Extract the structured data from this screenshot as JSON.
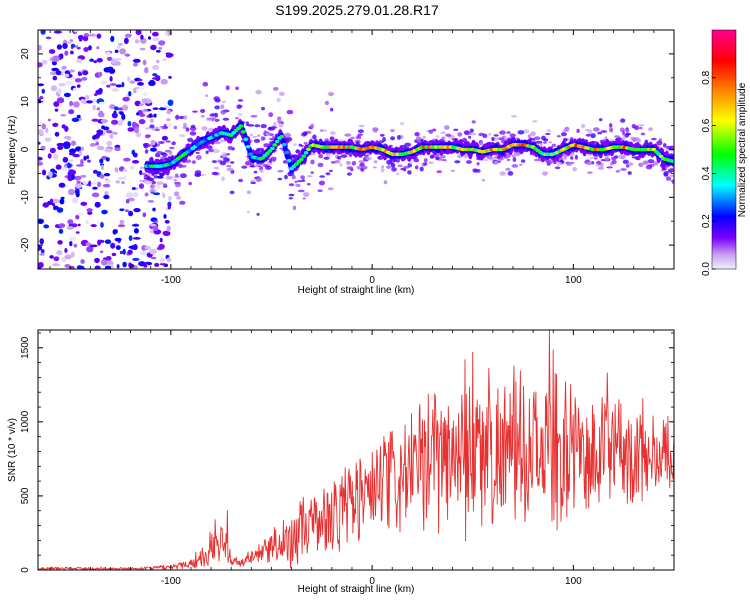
{
  "title": "S199.2025.279.01.28.R17",
  "chart_data": [
    {
      "type": "heatmap",
      "name": "spectrogram",
      "xlabel": "Height of straight line (km)",
      "ylabel": "Frequency (Hz)",
      "xlim": [
        -166,
        150
      ],
      "ylim": [
        -25,
        25
      ],
      "xticks": [
        -100,
        0,
        100
      ],
      "yticks": [
        -20,
        -10,
        0,
        10,
        20
      ],
      "colorbar": {
        "label": "Normalized spectral amplitude",
        "range": [
          0,
          1
        ],
        "ticks": [
          0.0,
          0.2,
          0.4,
          0.6,
          0.8
        ],
        "tick_labels": [
          "0.0",
          "0.2",
          "0.4",
          "0.6",
          "0.8"
        ],
        "stops": [
          "#f0f0ff",
          "#c8a0f0",
          "#7a00ff",
          "#0000ff",
          "#00ffff",
          "#00ff00",
          "#ffff00",
          "#ff8000",
          "#ff0000",
          "#ff0090"
        ]
      },
      "noise_region": {
        "x": [
          -166,
          -100
        ],
        "amplitude": 0.25
      },
      "ridge": {
        "x": [
          -110,
          -105,
          -100,
          -95,
          -90,
          -85,
          -80,
          -75,
          -70,
          -65,
          -60,
          -55,
          -50,
          -45,
          -40,
          -35,
          -30,
          -25,
          -20,
          -15,
          -10,
          -5,
          0,
          5,
          10,
          15,
          20,
          25,
          30,
          35,
          40,
          45,
          50,
          55,
          60,
          65,
          70,
          75,
          80,
          85,
          90,
          95,
          100,
          105,
          110,
          115,
          120,
          125,
          130,
          135,
          140,
          145,
          150
        ],
        "freq": [
          -3.5,
          -3.5,
          -3,
          -1.5,
          0,
          1.5,
          2.5,
          3.5,
          3,
          5,
          -1.5,
          -2,
          0,
          3,
          -4,
          -2,
          1,
          0.5,
          0.5,
          0.5,
          0.5,
          0,
          0.5,
          0,
          -1,
          -1,
          -0.5,
          0.5,
          0.5,
          0.5,
          0.5,
          0,
          0,
          -0.5,
          0,
          0,
          1,
          1,
          0.5,
          -1,
          -1,
          0,
          1,
          0.5,
          0,
          0,
          0.5,
          0.5,
          0,
          0,
          0,
          -2,
          -2.5
        ],
        "amp": [
          0.45,
          0.5,
          0.4,
          0.45,
          0.45,
          0.4,
          0.4,
          0.45,
          0.5,
          0.45,
          0.45,
          0.45,
          0.45,
          0.5,
          0.45,
          0.45,
          0.55,
          0.7,
          0.75,
          0.75,
          0.7,
          0.75,
          0.75,
          0.75,
          0.8,
          0.75,
          0.7,
          0.75,
          0.8,
          0.8,
          0.7,
          0.65,
          0.75,
          0.7,
          0.75,
          0.75,
          0.9,
          0.85,
          0.7,
          0.6,
          0.55,
          0.7,
          0.8,
          0.8,
          0.75,
          0.7,
          0.75,
          0.8,
          0.75,
          0.65,
          0.6,
          0.6,
          0.5
        ]
      }
    },
    {
      "type": "line",
      "name": "snr",
      "xlabel": "Height of straight line (km)",
      "ylabel": "SNR (10 * v/v)",
      "xlim": [
        -166,
        150
      ],
      "ylim": [
        0,
        1620
      ],
      "xticks": [
        -100,
        0,
        100
      ],
      "yticks": [
        0,
        500,
        1000,
        1500
      ],
      "color": "#e83030",
      "envelope": {
        "x": [
          -166,
          -140,
          -120,
          -100,
          -90,
          -85,
          -80,
          -75,
          -72,
          -70,
          -65,
          -60,
          -55,
          -50,
          -45,
          -40,
          -35,
          -30,
          -25,
          -20,
          -15,
          -10,
          -5,
          0,
          5,
          10,
          15,
          20,
          25,
          30,
          35,
          40,
          45,
          50,
          55,
          60,
          65,
          70,
          75,
          80,
          85,
          90,
          95,
          100,
          105,
          110,
          115,
          120,
          125,
          130,
          135,
          140,
          145,
          150
        ],
        "mean": [
          10,
          10,
          10,
          20,
          50,
          90,
          140,
          170,
          160,
          60,
          50,
          80,
          120,
          140,
          170,
          220,
          270,
          300,
          340,
          370,
          420,
          460,
          500,
          520,
          560,
          600,
          620,
          650,
          700,
          760,
          780,
          800,
          780,
          820,
          800,
          760,
          800,
          820,
          800,
          780,
          820,
          850,
          800,
          820,
          800,
          780,
          800,
          820,
          800,
          780,
          800,
          760,
          780,
          800
        ],
        "amp": [
          10,
          10,
          10,
          15,
          40,
          80,
          120,
          130,
          120,
          30,
          30,
          60,
          100,
          140,
          160,
          180,
          200,
          220,
          240,
          280,
          300,
          320,
          330,
          340,
          350,
          360,
          380,
          400,
          420,
          450,
          480,
          520,
          520,
          550,
          500,
          450,
          470,
          500,
          480,
          450,
          520,
          550,
          450,
          420,
          400,
          380,
          380,
          360,
          360,
          340,
          330,
          320,
          300,
          300
        ]
      },
      "peaks": [
        {
          "x": 88,
          "y": 1620
        },
        {
          "x": 50,
          "y": 1470
        },
        {
          "x": 58,
          "y": 1360
        },
        {
          "x": 46,
          "y": 1420
        },
        {
          "x": 31,
          "y": 1190
        },
        {
          "x": -72,
          "y": 400
        },
        {
          "x": -78,
          "y": 340
        },
        {
          "x": 117,
          "y": 1330
        }
      ]
    }
  ]
}
